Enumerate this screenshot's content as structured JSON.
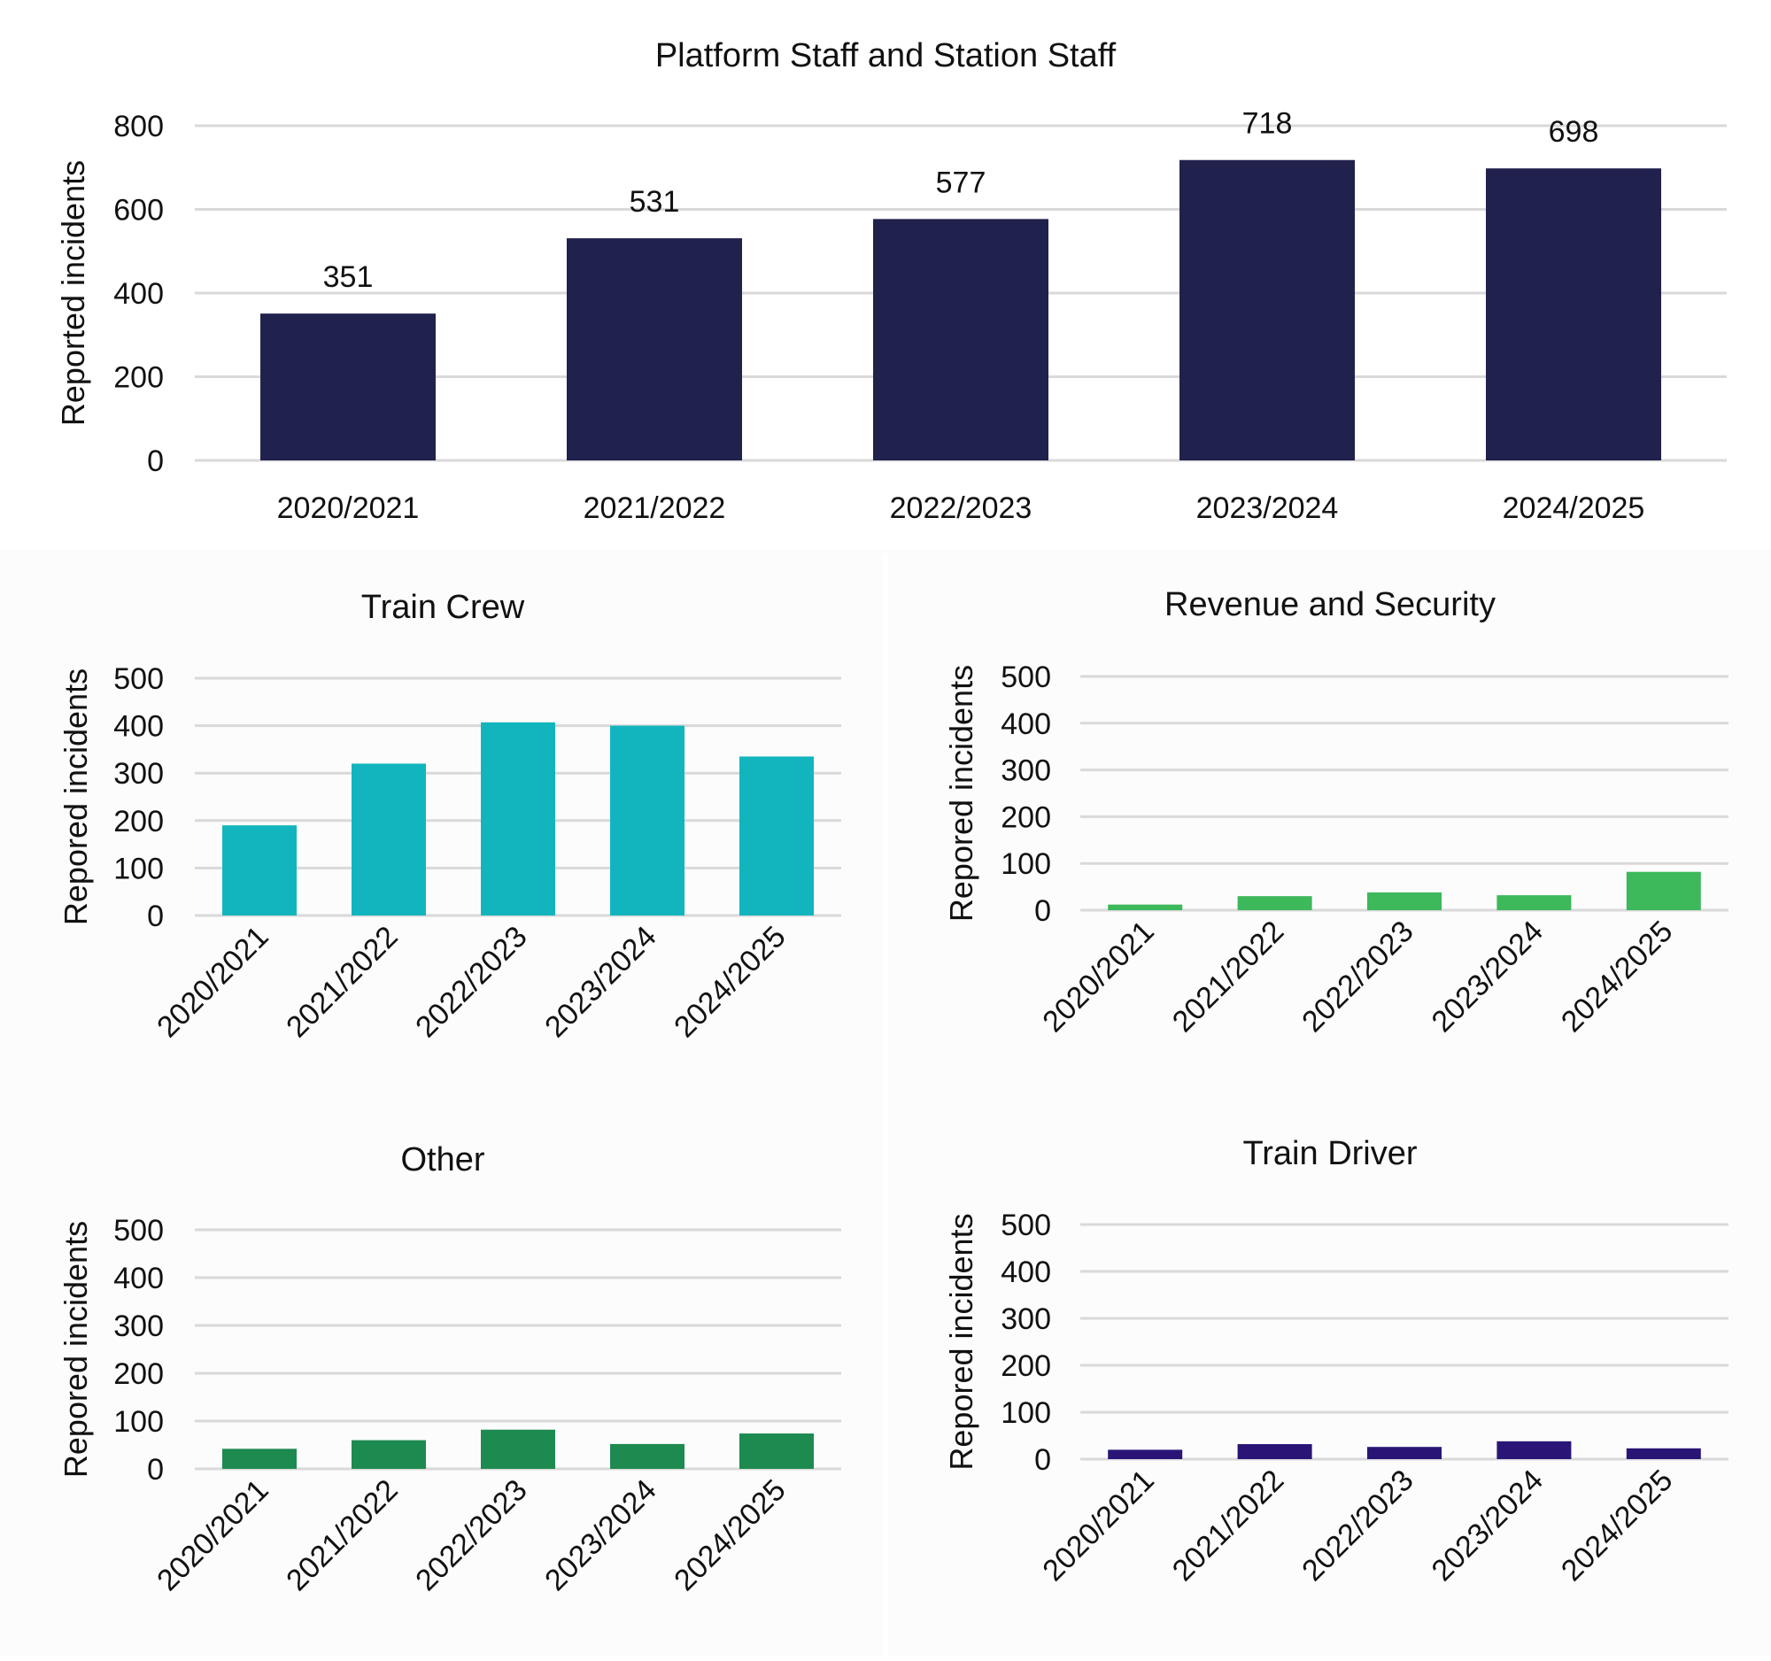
{
  "chart_data": [
    {
      "type": "bar",
      "title": "Platform Staff and Station Staff",
      "ylabel": "Reported incidents",
      "xlabel": "",
      "categories": [
        "2020/2021",
        "2021/2022",
        "2022/2023",
        "2023/2024",
        "2024/2025"
      ],
      "values": [
        351,
        531,
        577,
        718,
        698
      ],
      "data_labels": [
        "351",
        "531",
        "577",
        "718",
        "698"
      ],
      "yticks": [
        "0",
        "200",
        "400",
        "600",
        "800"
      ],
      "ylim": [
        0,
        800
      ],
      "grid": true,
      "legend": "none",
      "color": "#21214e",
      "xtick_rotation": 0
    },
    {
      "type": "bar",
      "title": "Train Crew",
      "ylabel": "Repored incidents",
      "xlabel": "",
      "categories": [
        "2020/2021",
        "2021/2022",
        "2022/2023",
        "2023/2024",
        "2024/2025"
      ],
      "values": [
        190,
        320,
        407,
        400,
        335
      ],
      "yticks": [
        "0",
        "100",
        "200",
        "300",
        "400",
        "500"
      ],
      "ylim": [
        0,
        500
      ],
      "grid": true,
      "legend": "none",
      "color": "#12b5be",
      "xtick_rotation": -45
    },
    {
      "type": "bar",
      "title": "Revenue and Security",
      "ylabel": "Repored incidents",
      "xlabel": "",
      "categories": [
        "2020/2021",
        "2021/2022",
        "2022/2023",
        "2023/2024",
        "2024/2025"
      ],
      "values": [
        12,
        30,
        38,
        32,
        82
      ],
      "yticks": [
        "0",
        "100",
        "200",
        "300",
        "400",
        "500"
      ],
      "ylim": [
        0,
        500
      ],
      "grid": true,
      "legend": "none",
      "color": "#3db85a",
      "xtick_rotation": -45
    },
    {
      "type": "bar",
      "title": "Other",
      "ylabel": "Repored incidents",
      "xlabel": "",
      "categories": [
        "2020/2021",
        "2021/2022",
        "2022/2023",
        "2023/2024",
        "2024/2025"
      ],
      "values": [
        42,
        60,
        82,
        52,
        74
      ],
      "yticks": [
        "0",
        "100",
        "200",
        "300",
        "400",
        "500"
      ],
      "ylim": [
        0,
        500
      ],
      "grid": true,
      "legend": "none",
      "color": "#1d8a50",
      "xtick_rotation": -45
    },
    {
      "type": "bar",
      "title": "Train Driver",
      "ylabel": "Repored incidents",
      "xlabel": "",
      "categories": [
        "2020/2021",
        "2021/2022",
        "2022/2023",
        "2023/2024",
        "2024/2025"
      ],
      "values": [
        20,
        32,
        26,
        38,
        23
      ],
      "yticks": [
        "0",
        "100",
        "200",
        "300",
        "400",
        "500"
      ],
      "ylim": [
        0,
        500
      ],
      "grid": true,
      "legend": "none",
      "color": "#2a1577",
      "xtick_rotation": -45
    }
  ]
}
